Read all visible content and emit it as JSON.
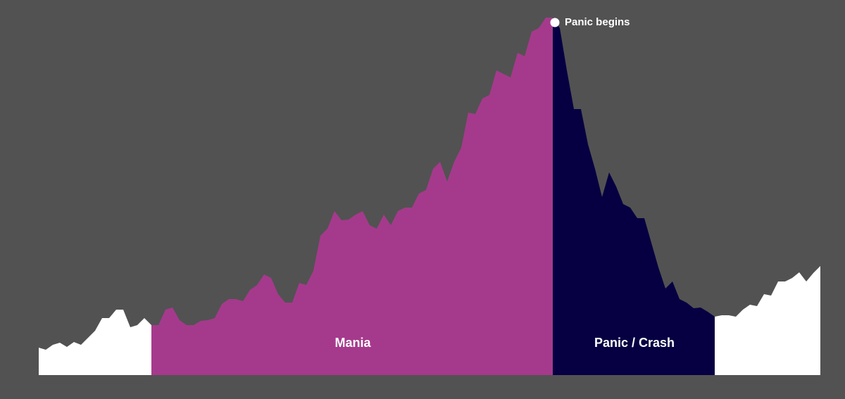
{
  "chart_data": {
    "type": "area",
    "ylim": [
      0,
      510
    ],
    "series": [
      {
        "color": "#ffffff",
        "values": [
          39,
          36,
          43,
          46,
          40,
          47,
          43,
          53,
          63,
          81,
          81,
          93,
          93,
          68,
          71,
          81,
          71,
          null,
          null,
          null,
          null,
          null,
          null,
          null,
          null,
          null,
          null,
          null,
          null,
          null,
          null,
          null,
          null,
          null,
          null,
          null,
          null,
          null,
          null,
          null,
          null,
          null,
          null,
          null,
          null,
          null,
          null,
          null,
          null,
          null,
          null,
          null,
          null,
          null,
          null,
          null,
          null,
          null,
          null,
          null,
          null,
          null,
          null,
          null,
          null,
          null,
          null,
          null,
          null,
          null,
          null,
          null,
          null,
          null,
          null,
          null,
          null,
          null,
          null,
          null,
          null,
          null,
          null,
          null,
          null,
          null,
          null,
          null,
          null,
          null,
          null,
          null,
          null,
          null,
          null,
          null,
          83,
          85,
          85,
          83,
          93,
          100,
          98,
          115,
          113,
          133,
          133,
          138,
          146,
          133,
          145,
          155
        ]
      },
      {
        "name": "Mania",
        "color": "#a53a8c",
        "values": [
          null,
          null,
          null,
          null,
          null,
          null,
          null,
          null,
          null,
          null,
          null,
          null,
          null,
          null,
          null,
          null,
          71,
          71,
          93,
          96,
          78,
          71,
          71,
          77,
          78,
          81,
          101,
          108,
          108,
          105,
          121,
          128,
          143,
          138,
          115,
          103,
          103,
          131,
          128,
          148,
          198,
          208,
          233,
          220,
          221,
          228,
          233,
          213,
          208,
          228,
          213,
          233,
          238,
          238,
          258,
          263,
          293,
          303,
          275,
          303,
          323,
          373,
          371,
          393,
          398,
          433,
          428,
          423,
          458,
          453,
          488,
          493,
          508,
          508,
          null,
          null,
          null,
          null,
          null,
          null,
          null,
          null,
          null,
          null,
          null,
          null,
          null,
          null,
          null,
          null,
          null,
          null,
          null,
          null,
          null,
          null,
          null,
          null,
          null,
          null,
          null,
          null,
          null,
          null,
          null,
          null,
          null,
          null,
          null,
          null,
          null,
          null
        ]
      },
      {
        "name": "Panic / Crash",
        "color": "#060042",
        "values": [
          null,
          null,
          null,
          null,
          null,
          null,
          null,
          null,
          null,
          null,
          null,
          null,
          null,
          null,
          null,
          null,
          null,
          null,
          null,
          null,
          null,
          null,
          null,
          null,
          null,
          null,
          null,
          null,
          null,
          null,
          null,
          null,
          null,
          null,
          null,
          null,
          null,
          null,
          null,
          null,
          null,
          null,
          null,
          null,
          null,
          null,
          null,
          null,
          null,
          null,
          null,
          null,
          null,
          null,
          null,
          null,
          null,
          null,
          null,
          null,
          null,
          null,
          null,
          null,
          null,
          null,
          null,
          null,
          null,
          null,
          null,
          null,
          null,
          508,
          493,
          433,
          378,
          378,
          328,
          293,
          253,
          288,
          268,
          243,
          238,
          223,
          223,
          188,
          153,
          123,
          133,
          108,
          103,
          95,
          96,
          90,
          83,
          null,
          null,
          null,
          null,
          null,
          null,
          null,
          null,
          null,
          null,
          null,
          null,
          null,
          null,
          null
        ]
      }
    ],
    "annotation": "Panic begins"
  }
}
